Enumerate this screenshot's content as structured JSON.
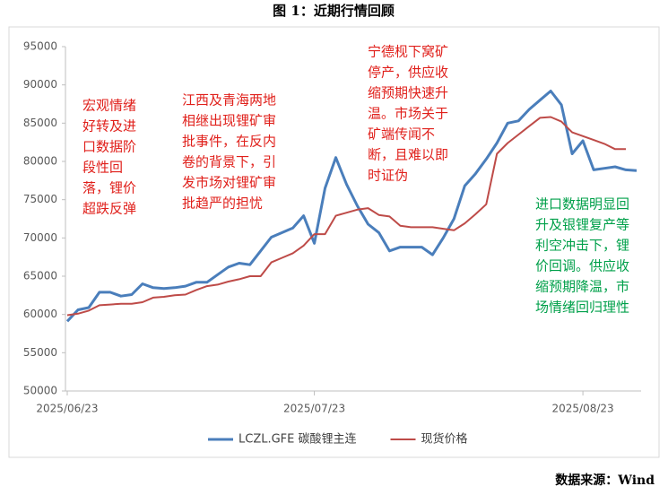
{
  "chart_data": {
    "type": "line",
    "title": "图 1：近期行情回顾",
    "source": "数据来源：Wind",
    "categories": [
      "2025/06/23",
      null,
      null,
      null,
      null,
      null,
      null,
      null,
      null,
      null,
      null,
      null,
      null,
      null,
      null,
      null,
      null,
      null,
      null,
      null,
      null,
      null,
      null,
      "2025/07/23",
      null,
      null,
      null,
      null,
      null,
      null,
      null,
      null,
      null,
      null,
      null,
      null,
      null,
      null,
      null,
      null,
      null,
      null,
      null,
      null,
      null,
      null,
      null,
      null,
      "2025/08/23",
      null,
      null,
      null,
      null,
      null
    ],
    "series": [
      {
        "name": "LCZL.GFE 碳酸锂主连",
        "color": "#4a7ebb",
        "values": [
          59100,
          60600,
          60900,
          62900,
          62900,
          62400,
          62600,
          64000,
          63500,
          63400,
          63500,
          63700,
          64200,
          64200,
          65200,
          66200,
          66700,
          66500,
          68300,
          70100,
          70700,
          71300,
          72900,
          69300,
          76500,
          80500,
          77000,
          74200,
          71800,
          70700,
          68300,
          68800,
          68800,
          68800,
          67800,
          70000,
          72500,
          76800,
          78400,
          80300,
          82400,
          85000,
          85300,
          86800,
          88000,
          89200,
          87400,
          81000,
          82700,
          78900,
          79100,
          79300,
          78900,
          78800
        ]
      },
      {
        "name": "现货价格",
        "color": "#be4b48",
        "values": [
          59900,
          60100,
          60500,
          61200,
          61300,
          61400,
          61400,
          61600,
          62200,
          62300,
          62500,
          62600,
          63200,
          63700,
          63900,
          64300,
          64600,
          65000,
          65000,
          66800,
          67400,
          68000,
          69000,
          70500,
          70500,
          72900,
          73300,
          73700,
          73900,
          73000,
          72800,
          71600,
          71400,
          71400,
          71400,
          71200,
          71000,
          71900,
          73100,
          74400,
          81000,
          82400,
          83500,
          84600,
          85700,
          85800,
          85200,
          83800,
          83300,
          82800,
          82300,
          81600,
          81600,
          null
        ]
      }
    ],
    "ylim": [
      50000,
      95000
    ],
    "yticks": [
      50000,
      55000,
      60000,
      65000,
      70000,
      75000,
      80000,
      85000,
      90000,
      95000
    ],
    "grid": false,
    "legend": "bottom",
    "annotations": [
      {
        "color": "#e0201b",
        "lines": [
          "宏观情绪",
          "好转及进",
          "口数据阶",
          "段性回",
          "落，锂价",
          "超跌反弹"
        ]
      },
      {
        "color": "#e0201b",
        "lines": [
          "江西及青海两地",
          "相继出现锂矿审",
          "批事件，在反内",
          "卷的背景下，引",
          "发市场对锂矿审",
          "批趋严的担忧"
        ]
      },
      {
        "color": "#e0201b",
        "lines": [
          "宁德枧下窝矿",
          "停产，供应收",
          "缩预期快速升",
          "温。市场关于",
          "矿端传闻不",
          "断，且难以即",
          "时证伪"
        ]
      },
      {
        "color": "#00a04a",
        "lines": [
          "进口数据明显回",
          "升及银锂复产等",
          "利空冲击下，锂",
          "价回调。供应收",
          "缩预期降温，市",
          "场情绪回归理性"
        ]
      }
    ]
  }
}
